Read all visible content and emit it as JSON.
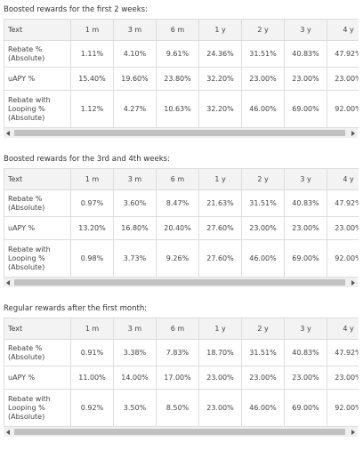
{
  "sections": [
    {
      "heading": "Boosted rewards for the first 2 weeks:",
      "columns": [
        "Text",
        "1 m",
        "3 m",
        "6 m",
        "1 y",
        "2 y",
        "3 y",
        "4 y"
      ],
      "rows": [
        {
          "label": "Rebate % (Absolute)",
          "values": [
            "1.11%",
            "4.10%",
            "9.61%",
            "24.36%",
            "31.51%",
            "40.83%",
            "47.92%"
          ]
        },
        {
          "label": "uAPY %",
          "values": [
            "15.40%",
            "19.60%",
            "23.80%",
            "32.20%",
            "23.00%",
            "23.00%",
            "23.00%"
          ]
        },
        {
          "label": "Rebate with Looping % (Absolute)",
          "values": [
            "1.12%",
            "4.27%",
            "10.63%",
            "32.20%",
            "46.00%",
            "69.00%",
            "92.00%"
          ]
        }
      ]
    },
    {
      "heading": "Boosted rewards for the 3rd and 4th weeks:",
      "columns": [
        "Text",
        "1 m",
        "3 m",
        "6 m",
        "1 y",
        "2 y",
        "3 y",
        "4 y"
      ],
      "rows": [
        {
          "label": "Rebate % (Absolute)",
          "values": [
            "0.97%",
            "3.60%",
            "8.47%",
            "21.63%",
            "31.51%",
            "40.83%",
            "47.92%"
          ]
        },
        {
          "label": "uAPY %",
          "values": [
            "13.20%",
            "16.80%",
            "20.40%",
            "27.60%",
            "23.00%",
            "23.00%",
            "23.00%"
          ]
        },
        {
          "label": "Rebate with Looping % (Absolute)",
          "values": [
            "0.98%",
            "3.73%",
            "9.26%",
            "27.60%",
            "46.00%",
            "69.00%",
            "92.00%"
          ]
        }
      ]
    },
    {
      "heading": "Regular rewards after the first month:",
      "columns": [
        "Text",
        "1 m",
        "3 m",
        "6 m",
        "1 y",
        "2 y",
        "3 y",
        "4 y"
      ],
      "rows": [
        {
          "label": "Rebate % (Absolute)",
          "values": [
            "0.91%",
            "3.38%",
            "7.83%",
            "18.70%",
            "31.51%",
            "40.83%",
            "47.92%"
          ]
        },
        {
          "label": "uAPY %",
          "values": [
            "11.00%",
            "14.00%",
            "17.00%",
            "23.00%",
            "23.00%",
            "23.00%",
            "23.00%"
          ]
        },
        {
          "label": "Rebate with Looping % (Absolute)",
          "values": [
            "0.92%",
            "3.50%",
            "8.50%",
            "23.00%",
            "46.00%",
            "69.00%",
            "92.00%"
          ]
        }
      ]
    }
  ]
}
